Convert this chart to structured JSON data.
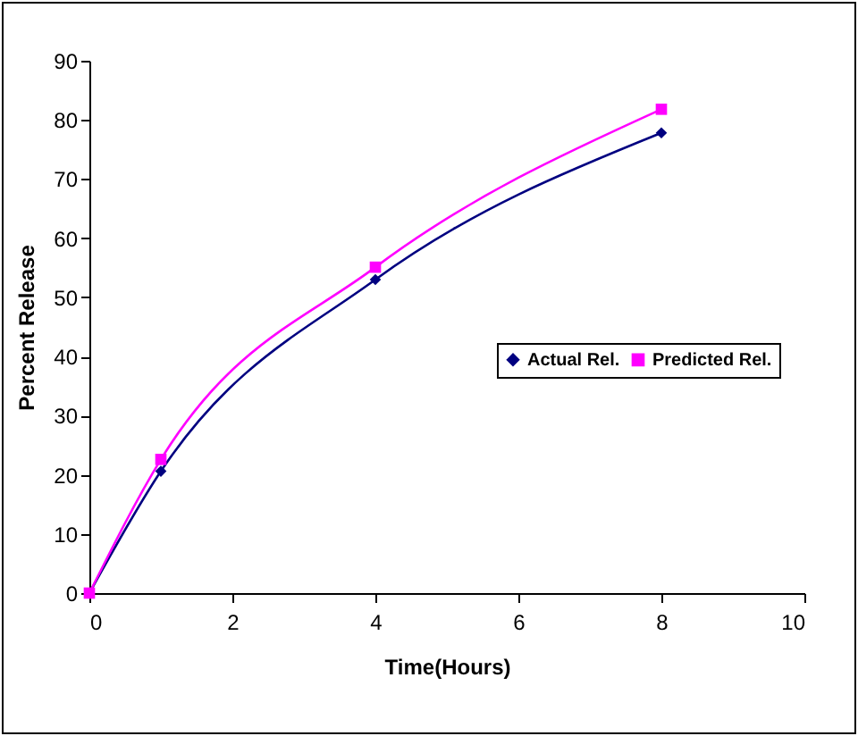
{
  "chart_data": {
    "type": "line",
    "xlabel": "Time(Hours)",
    "ylabel": "Percent Release",
    "x": [
      0,
      1,
      4,
      8
    ],
    "series": [
      {
        "name": "Actual Rel.",
        "color": "#000080",
        "marker": "diamond",
        "values": [
          0,
          20.6,
          53,
          77.8
        ]
      },
      {
        "name": "Predicted Rel.",
        "color": "#ff00ff",
        "marker": "square",
        "values": [
          0,
          22.6,
          55.1,
          81.8
        ]
      }
    ],
    "xlim": [
      0,
      10
    ],
    "xticks": [
      0,
      2,
      4,
      6,
      8,
      10
    ],
    "ylim": [
      0,
      90
    ],
    "yticks": [
      0,
      10,
      20,
      30,
      40,
      50,
      60,
      70,
      80,
      90
    ],
    "grid": false,
    "legend": "right",
    "line_style": "solid"
  }
}
